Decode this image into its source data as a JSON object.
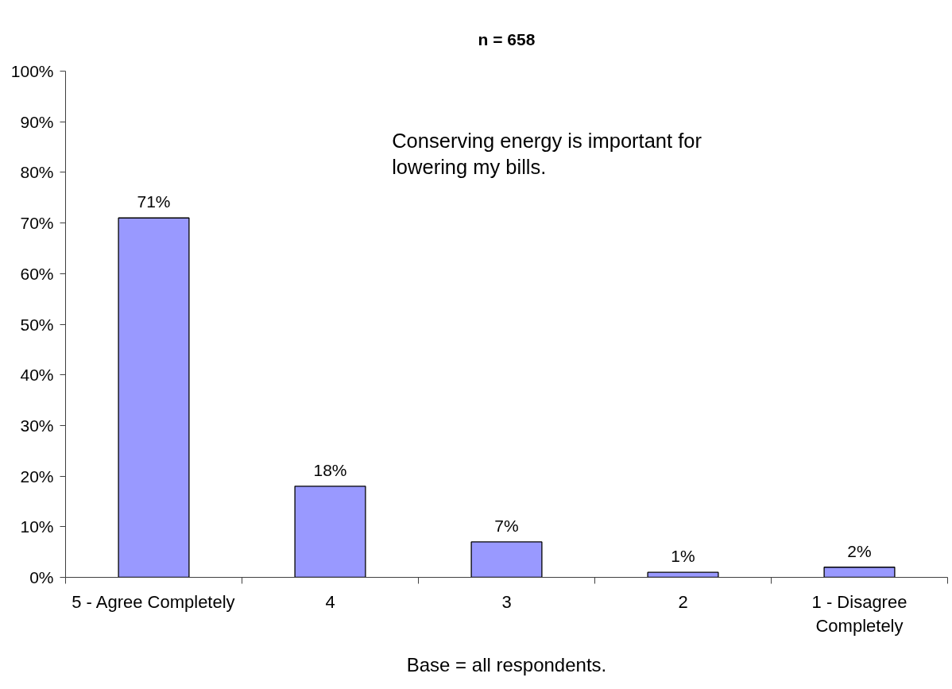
{
  "chart_data": {
    "type": "bar",
    "title": "n = 658",
    "categories": [
      "5 - Agree Completely",
      "4",
      "3",
      "2",
      "1 - Disagree Completely"
    ],
    "values": [
      71,
      18,
      7,
      1,
      2
    ],
    "color": "#9999ff",
    "value_labels": [
      "71%",
      "18%",
      "7%",
      "1%",
      "2%"
    ],
    "ylim": [
      0,
      100
    ],
    "yticks": [
      {
        "value": 0,
        "label": "0%"
      },
      {
        "value": 10,
        "label": "10%"
      },
      {
        "value": 20,
        "label": "20%"
      },
      {
        "value": 30,
        "label": "30%"
      },
      {
        "value": 40,
        "label": "40%"
      },
      {
        "value": 50,
        "label": "50%"
      },
      {
        "value": 60,
        "label": "60%"
      },
      {
        "value": 70,
        "label": "70%"
      },
      {
        "value": 80,
        "label": "80%"
      },
      {
        "value": 90,
        "label": "90%"
      },
      {
        "value": 100,
        "label": "100%"
      }
    ],
    "grid": false,
    "annotations": [
      "Conserving energy is important for lowering my bills.",
      "Base = all respondents."
    ]
  }
}
